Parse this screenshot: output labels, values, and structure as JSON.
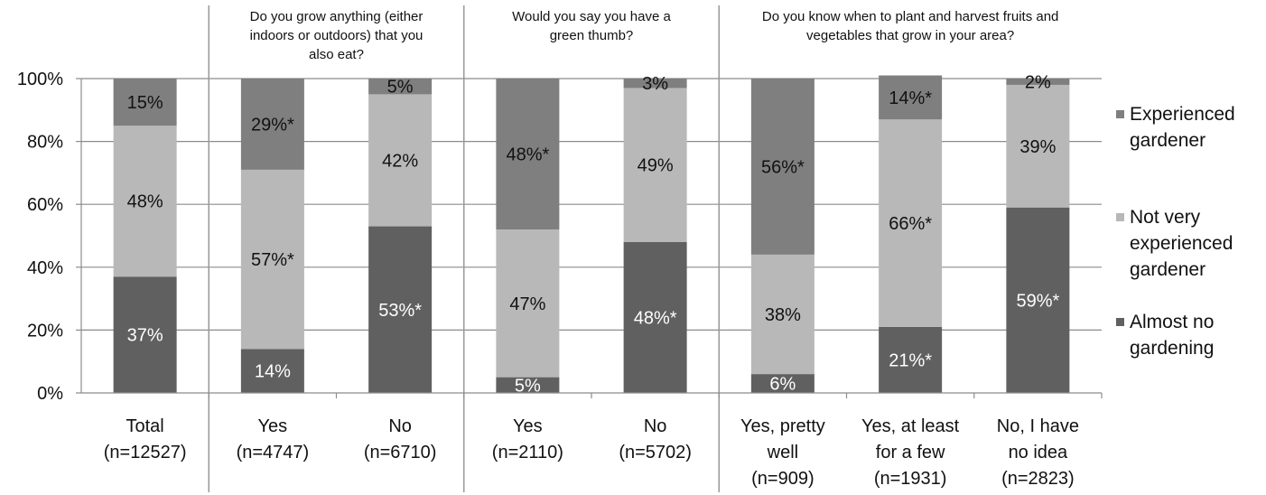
{
  "chart_data": {
    "type": "bar",
    "stacked": true,
    "percent_stacked": true,
    "ylim": [
      0,
      100
    ],
    "yticks": [
      "0%",
      "20%",
      "40%",
      "60%",
      "80%",
      "100%"
    ],
    "grid": true,
    "legend_position": "right",
    "groups": [
      {
        "title": "",
        "start": 0,
        "end": 0
      },
      {
        "title": "Do you grow anything (either indoors or outdoors) that you also eat?",
        "title_lines": [
          "Do you grow anything (either",
          "indoors or outdoors) that you",
          "also eat?"
        ],
        "start": 1,
        "end": 2
      },
      {
        "title": "Would you say you have a green thumb?",
        "title_lines": [
          "Would you say you have a",
          "green thumb?"
        ],
        "start": 3,
        "end": 4
      },
      {
        "title": "Do you know when to plant and harvest fruits and vegetables that grow in your area?",
        "title_lines": [
          "Do you know when to plant and harvest fruits and",
          "vegetables that grow in your area?"
        ],
        "start": 5,
        "end": 7
      }
    ],
    "categories": [
      "Total (n=12527)",
      "Yes (n=4747)",
      "No (n=6710)",
      "Yes (n=2110)",
      "No (n=5702)",
      "Yes, pretty well (n=909)",
      "Yes, at least for a few (n=1931)",
      "No, I have no idea (n=2823)"
    ],
    "category_lines": [
      [
        "Total",
        "(n=12527)"
      ],
      [
        "Yes",
        "(n=4747)"
      ],
      [
        "No",
        "(n=6710)"
      ],
      [
        "Yes",
        "(n=2110)"
      ],
      [
        "No",
        "(n=5702)"
      ],
      [
        "Yes, pretty",
        "well",
        "(n=909)"
      ],
      [
        "Yes, at least",
        "for a few",
        "(n=1931)"
      ],
      [
        "No, I have",
        "no idea",
        "(n=2823)"
      ]
    ],
    "series": [
      {
        "name": "Almost no gardening",
        "legend_lines": [
          "Almost no",
          "gardening"
        ],
        "color": "#606060",
        "label_color": "#ffffff",
        "values": [
          37,
          14,
          53,
          5,
          48,
          6,
          21,
          59
        ],
        "labels": [
          "37%",
          "14%",
          "53%*",
          "5%",
          "48%*",
          "6%",
          "21%*",
          "59%*"
        ]
      },
      {
        "name": "Not very experienced gardener",
        "legend_lines": [
          "Not very",
          "experienced",
          "gardener"
        ],
        "color": "#b8b8b8",
        "label_color": "#111111",
        "values": [
          48,
          57,
          42,
          47,
          49,
          38,
          66,
          39
        ],
        "labels": [
          "48%",
          "57%*",
          "42%",
          "47%",
          "49%",
          "38%",
          "66%*",
          "39%"
        ]
      },
      {
        "name": "Experienced gardener",
        "legend_lines": [
          "Experienced",
          "gardener"
        ],
        "color": "#7f7f7f",
        "label_color": "#111111",
        "values": [
          15,
          29,
          5,
          48,
          3,
          56,
          14,
          2
        ],
        "labels": [
          "15%",
          "29%*",
          "5%",
          "48%*",
          "3%",
          "56%*",
          "14%*",
          "2%"
        ]
      }
    ]
  }
}
